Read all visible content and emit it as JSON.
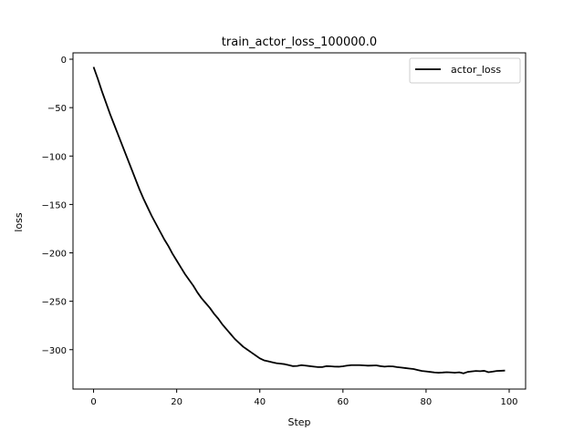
{
  "chart_data": {
    "type": "line",
    "title": "train_actor_loss_100000.0",
    "xlabel": "Step",
    "ylabel": "loss",
    "xlim": [
      -4.95,
      103.95
    ],
    "ylim": [
      -340.7,
      6.6
    ],
    "xticks": [
      0,
      20,
      40,
      60,
      80,
      100
    ],
    "yticks": [
      0,
      -50,
      -100,
      -150,
      -200,
      -250,
      -300
    ],
    "xtick_labels": [
      "0",
      "20",
      "40",
      "60",
      "80",
      "100"
    ],
    "ytick_labels": [
      "0",
      "−50",
      "−100",
      "−150",
      "−200",
      "−250",
      "−300"
    ],
    "grid": false,
    "legend": {
      "position": "top-right"
    },
    "series": [
      {
        "name": "actor_loss",
        "color": "#000000",
        "x": [
          0,
          1,
          2,
          3,
          4,
          5,
          6,
          7,
          8,
          9,
          10,
          11,
          12,
          13,
          14,
          15,
          16,
          17,
          18,
          19,
          20,
          21,
          22,
          23,
          24,
          25,
          26,
          27,
          28,
          29,
          30,
          31,
          32,
          33,
          34,
          35,
          36,
          37,
          38,
          39,
          40,
          41,
          42,
          43,
          44,
          45,
          46,
          47,
          48,
          49,
          50,
          51,
          52,
          53,
          54,
          55,
          56,
          57,
          58,
          59,
          60,
          61,
          62,
          63,
          64,
          65,
          66,
          67,
          68,
          69,
          70,
          71,
          72,
          73,
          74,
          75,
          76,
          77,
          78,
          79,
          80,
          81,
          82,
          83,
          84,
          85,
          86,
          87,
          88,
          89,
          90,
          91,
          92,
          93,
          94,
          95,
          96,
          97,
          98,
          99
        ],
        "y": [
          -8,
          -20,
          -33,
          -45,
          -57,
          -68,
          -79,
          -90,
          -101,
          -112,
          -123,
          -134,
          -144,
          -153,
          -162,
          -170,
          -178,
          -186,
          -193,
          -201,
          -208,
          -215,
          -222,
          -228,
          -234,
          -241,
          -247,
          -252,
          -257,
          -263,
          -268,
          -274,
          -279,
          -284,
          -289,
          -293,
          -297,
          -300,
          -303,
          -306,
          -309,
          -311,
          -312,
          -313,
          -314,
          -314.5,
          -315,
          -316,
          -317,
          -316.8,
          -316,
          -316.5,
          -317,
          -317.5,
          -318,
          -318,
          -317,
          -317.2,
          -317.5,
          -317.6,
          -317.2,
          -316.5,
          -316,
          -316,
          -316,
          -316.2,
          -316.5,
          -316.4,
          -316.2,
          -317,
          -317.5,
          -317.2,
          -317.3,
          -318,
          -318.5,
          -319,
          -319.5,
          -320,
          -321,
          -322,
          -322.5,
          -323,
          -323.5,
          -323.8,
          -323.6,
          -323.3,
          -323.5,
          -323.8,
          -323.4,
          -324.5,
          -323,
          -322.5,
          -322,
          -322.2,
          -321.8,
          -323.3,
          -322.7,
          -322,
          -321.8,
          -321.6
        ]
      }
    ]
  }
}
